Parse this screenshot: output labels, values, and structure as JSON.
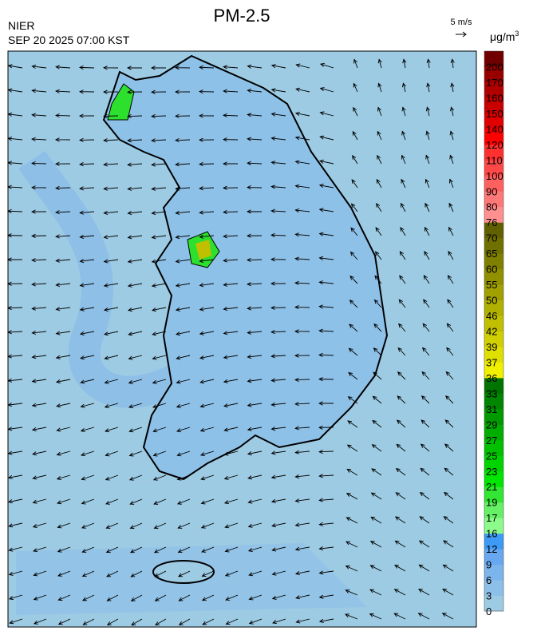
{
  "header": {
    "title": "PM-2.5",
    "source": "NIER",
    "time": "SEP 20 2025 07:00 KST",
    "wind_scale": "5 m/s",
    "unit": {
      "base": "μg/m",
      "sup": "3"
    }
  },
  "colorbar": {
    "labels": [
      0,
      3,
      6,
      9,
      12,
      16,
      17,
      19,
      21,
      23,
      25,
      27,
      29,
      31,
      33,
      36,
      37,
      39,
      42,
      46,
      50,
      55,
      60,
      65,
      70,
      76,
      80,
      90,
      100,
      110,
      120,
      140,
      150,
      160,
      170,
      200
    ],
    "colors": [
      "#9dcbe3",
      "#8dc0e8",
      "#7cb4ec",
      "#68a8f0",
      "#3d9af5",
      "#8cfb8c",
      "#66f066",
      "#33e633",
      "#00e600",
      "#00d400",
      "#00c000",
      "#00ad00",
      "#009900",
      "#008600",
      "#007300",
      "#f0f000",
      "#e0e000",
      "#d0d000",
      "#c0c000",
      "#b0b000",
      "#a0a000",
      "#909000",
      "#808000",
      "#707000",
      "#606000",
      "#ff9090",
      "#ff7878",
      "#ff6060",
      "#ff4848",
      "#ff3030",
      "#ff0000",
      "#e00000",
      "#c80000",
      "#b00000",
      "#980000",
      "#700000"
    ]
  }
}
